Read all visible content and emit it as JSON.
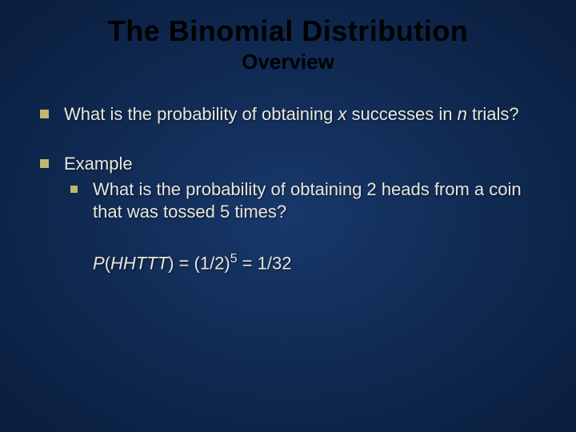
{
  "slide": {
    "title": "The Binomial Distribution",
    "subtitle": "Overview",
    "background_gradient": {
      "center": "#18386b",
      "mid": "#102a52",
      "edge": "#0a1d3d"
    },
    "title_color": "#000000",
    "body_color": "#e8e6dc",
    "bullet_marker_color": "#c0b870",
    "title_fontsize": 36,
    "subtitle_fontsize": 26,
    "body_fontsize": 22,
    "bullets": [
      {
        "text_prefix": "What is the probability of obtaining ",
        "var1": "x",
        "text_mid": " successes in ",
        "var2": "n",
        "text_suffix": " trials?"
      },
      {
        "text": "Example",
        "sub": [
          {
            "text": "What is the probability of obtaining 2 heads from a coin that was tossed 5 times?"
          }
        ],
        "formula": {
          "func": "P",
          "arg": "HHTTT",
          "eq1": " = (1/2)",
          "exp": "5",
          "eq2": "  = 1/32"
        }
      }
    ]
  }
}
